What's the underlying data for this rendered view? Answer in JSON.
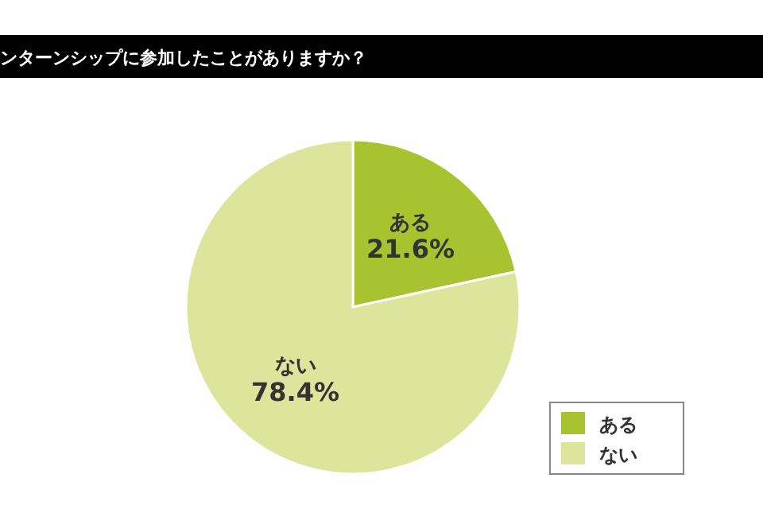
{
  "chart_data": {
    "type": "pie",
    "title": "ンターンシップに参加したことがありますか？",
    "categories": [
      "ある",
      "ない"
    ],
    "values": [
      21.6,
      78.4
    ],
    "colors": [
      "#a9c22f",
      "#dde49b"
    ],
    "value_labels": [
      "21.6%",
      "78.4%"
    ],
    "legend": "bottom right"
  }
}
